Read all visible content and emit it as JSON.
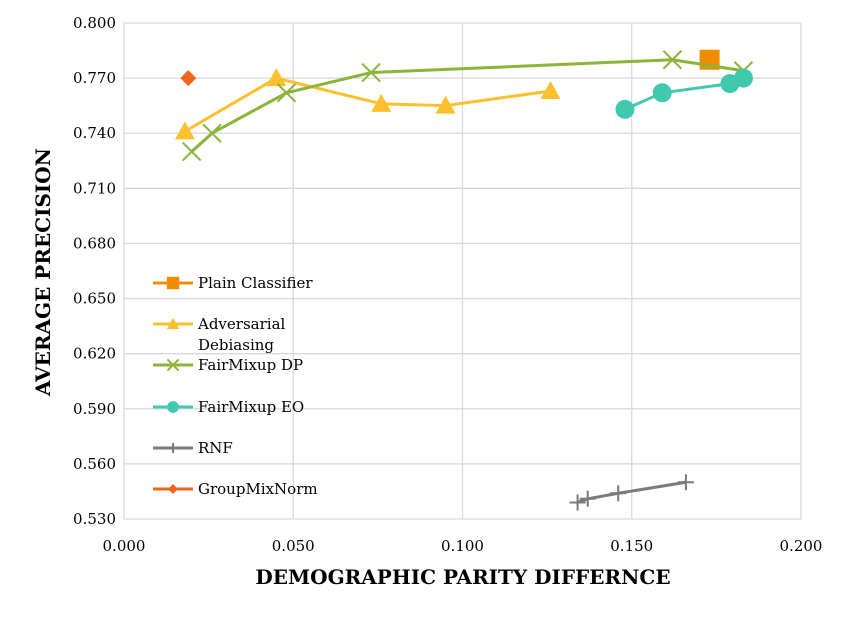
{
  "chart_data": {
    "type": "line",
    "title": "",
    "xlabel": "DEMOGRAPHIC PARITY DIFFERNCE",
    "ylabel": "AVERAGE PRECISION",
    "xlim": [
      0.0,
      0.2
    ],
    "ylim": [
      0.53,
      0.8
    ],
    "xticks": [
      "0.000",
      "0.050",
      "0.100",
      "0.150",
      "0.200"
    ],
    "yticks": [
      "0.530",
      "0.560",
      "0.590",
      "0.620",
      "0.650",
      "0.680",
      "0.710",
      "0.740",
      "0.770",
      "0.800"
    ],
    "grid": true,
    "legend_position": "left",
    "series": [
      {
        "name": "Plain Classifier",
        "color": "#F08C00",
        "marker": "square",
        "points": [
          [
            0.173,
            0.78
          ]
        ]
      },
      {
        "name": "Adversarial Debiasing",
        "color": "#FBC02D",
        "marker": "triangle",
        "points": [
          [
            0.018,
            0.741
          ],
          [
            0.045,
            0.77
          ],
          [
            0.076,
            0.756
          ],
          [
            0.095,
            0.755
          ],
          [
            0.126,
            0.763
          ]
        ]
      },
      {
        "name": "FairMixup DP",
        "color": "#8DB33A",
        "marker": "x",
        "points": [
          [
            0.02,
            0.73
          ],
          [
            0.026,
            0.74
          ],
          [
            0.048,
            0.762
          ],
          [
            0.073,
            0.773
          ],
          [
            0.162,
            0.78
          ],
          [
            0.183,
            0.774
          ]
        ]
      },
      {
        "name": "FairMixup EO",
        "color": "#40C9AE",
        "marker": "circle",
        "points": [
          [
            0.148,
            0.753
          ],
          [
            0.159,
            0.762
          ],
          [
            0.179,
            0.767
          ],
          [
            0.183,
            0.77
          ]
        ]
      },
      {
        "name": "RNF",
        "color": "#7A7A7A",
        "marker": "plus",
        "points": [
          [
            0.134,
            0.539
          ],
          [
            0.137,
            0.541
          ],
          [
            0.146,
            0.544
          ],
          [
            0.166,
            0.55
          ]
        ]
      },
      {
        "name": "GroupMixNorm",
        "color": "#F0661E",
        "marker": "diamond",
        "points": [
          [
            0.019,
            0.77
          ]
        ]
      }
    ]
  }
}
